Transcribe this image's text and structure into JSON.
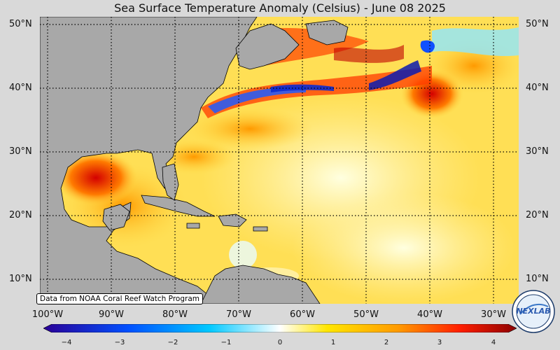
{
  "title": "Sea Surface Temperature Anomaly (Celsius) - June 08 2025",
  "lat_labels": [
    "50°N",
    "40°N",
    "30°N",
    "20°N",
    "10°N"
  ],
  "lon_labels": [
    "100°W",
    "90°W",
    "80°W",
    "70°W",
    "60°W",
    "50°W",
    "40°W",
    "30°W"
  ],
  "colorbar": {
    "ticks": [
      "−4",
      "−3",
      "−2",
      "−1",
      "0",
      "1",
      "2",
      "3",
      "4"
    ],
    "colors": [
      "#2a0096",
      "#0050ff",
      "#00c8ff",
      "#ffffff",
      "#ffe600",
      "#ff9a00",
      "#ff1e00",
      "#8c0000"
    ]
  },
  "credit": "Data from NOAA Coral Reef Watch Program",
  "logo": {
    "text": "NEXLAB"
  },
  "colors": {
    "land": "#a8a8a8",
    "ocean_warm": "#ffd640",
    "ocean_neutral": "#fff8b0",
    "background": "#d9d9d9"
  }
}
